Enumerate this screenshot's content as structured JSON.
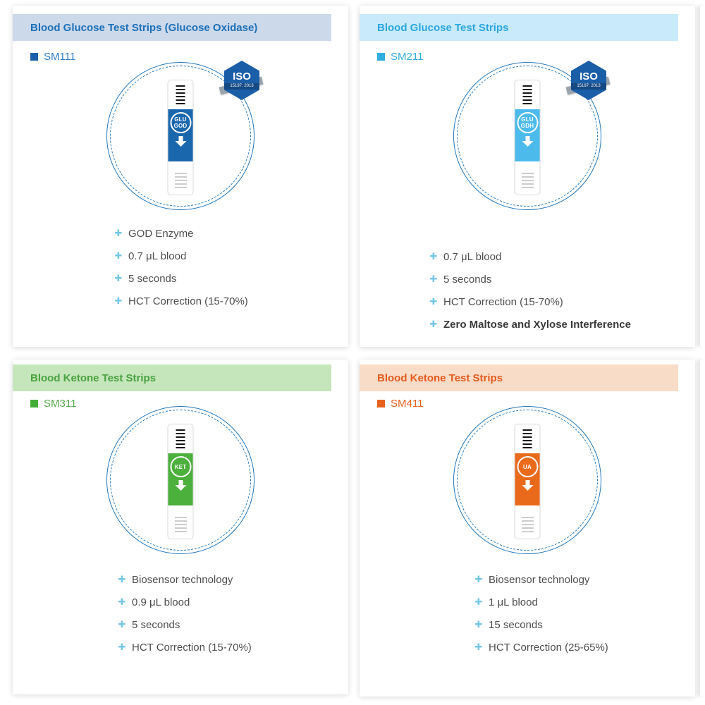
{
  "shared": {
    "bullet_icon": "✚",
    "circle_border": "#2277bb",
    "iso_badge_bg": "#1b5ea8"
  },
  "cards": [
    {
      "header_title": "Blood Glucose Test Strips  (Glucose Oxidase)",
      "model": "SM111",
      "colors": {
        "header_bg": "#ccd9ea",
        "header_text": "#1c70b8",
        "square": "#1d5fa9",
        "model_text": "#2e7cc1",
        "band": "#1b67ae"
      },
      "iso_badge": {
        "top": "ISO",
        "bottom": "15197: 2013"
      },
      "strip_label": {
        "line1": "GLU",
        "line2": "GOD"
      },
      "features": [
        {
          "text": "GOD Enzyme"
        },
        {
          "text": "0.7 μL blood"
        },
        {
          "text": "5 seconds"
        },
        {
          "text": "HCT Correction (15-70%)"
        }
      ]
    },
    {
      "header_title": "Blood Glucose Test Strips",
      "model": "SM211",
      "colors": {
        "header_bg": "#c8eafa",
        "header_text": "#2aa7e0",
        "square": "#30aee4",
        "model_text": "#30aee4",
        "band": "#4cbaeb"
      },
      "iso_badge": {
        "top": "ISO",
        "bottom": "15197: 2013"
      },
      "strip_label": {
        "line1": "GLU",
        "line2": "GDH"
      },
      "features": [
        {
          "text": "0.7 μL blood"
        },
        {
          "text": "5 seconds"
        },
        {
          "text": "HCT Correction (15-70%)"
        },
        {
          "text": "Zero Maltose and Xylose Interference",
          "bold": true
        }
      ]
    },
    {
      "header_title": "Blood Ketone Test Strips",
      "model": "SM311",
      "colors": {
        "header_bg": "#c5e5bb",
        "header_text": "#4aa23f",
        "square": "#44ad35",
        "model_text": "#57a84d",
        "band": "#4cb03c"
      },
      "strip_label": {
        "line1": "KET",
        "line2": ""
      },
      "features": [
        {
          "text": "Biosensor technology"
        },
        {
          "text": "0.9 μL blood"
        },
        {
          "text": "5 seconds"
        },
        {
          "text": "HCT Correction (15-70%)"
        }
      ]
    },
    {
      "header_title": "Blood Ketone Test Strips",
      "model": "SM411",
      "colors": {
        "header_bg": "#f8dcc7",
        "header_text": "#e45a1d",
        "square": "#e8611c",
        "model_text": "#e8611c",
        "band": "#ea6a1c"
      },
      "strip_label": {
        "line1": "UA",
        "line2": ""
      },
      "features": [
        {
          "text": "Biosensor technology"
        },
        {
          "text": "1 μL blood"
        },
        {
          "text": "15 seconds"
        },
        {
          "text": "HCT Correction (25-65%)"
        }
      ]
    }
  ]
}
